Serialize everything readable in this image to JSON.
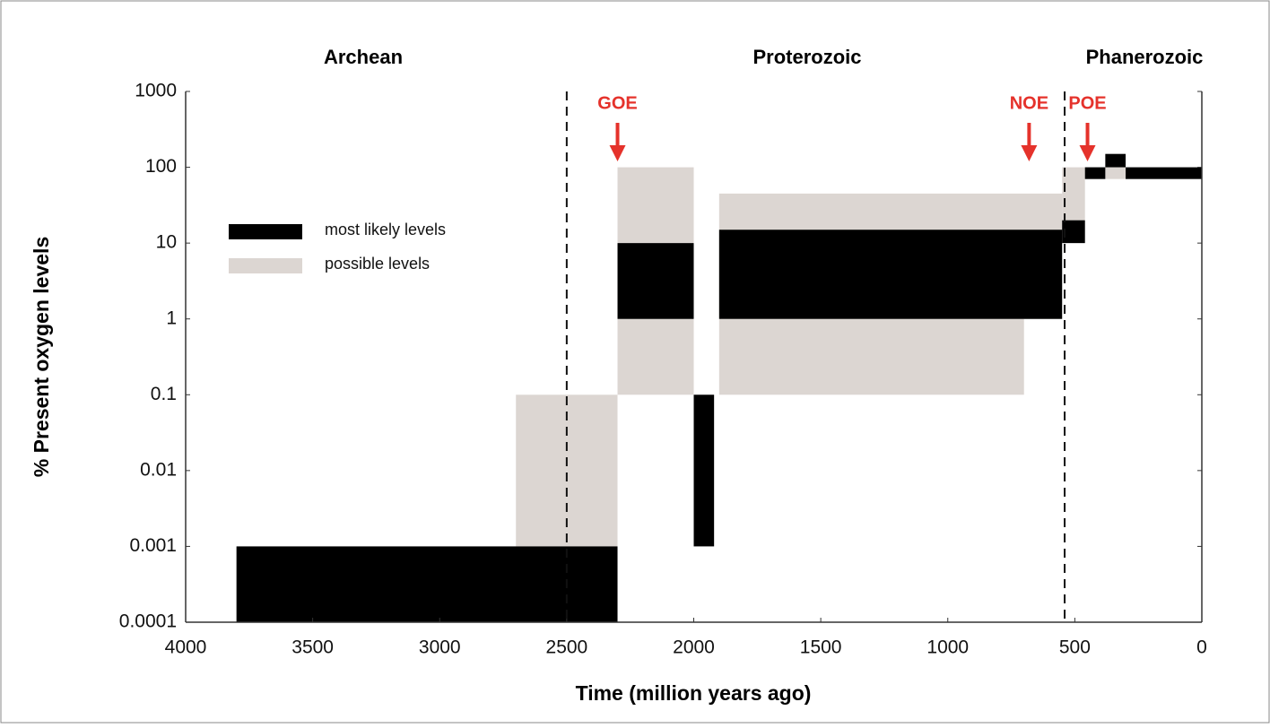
{
  "chart_data": {
    "type": "range",
    "xlabel": "Time (million years ago)",
    "ylabel": "% Present oxygen levels",
    "xlim": [
      4000,
      0
    ],
    "xticks": [
      4000,
      3500,
      3000,
      2500,
      2000,
      1500,
      1000,
      500,
      0
    ],
    "ylim": [
      0.0001,
      1000
    ],
    "yticks": [
      1000,
      100,
      10,
      1,
      0.1,
      0.01,
      0.001,
      0.0001
    ],
    "log_y": true,
    "legend": "upper left",
    "eras": [
      "Archean",
      "Proterozoic",
      "Phanerozoic"
    ],
    "boundaries": [
      2500,
      540
    ],
    "annotations": [
      {
        "text": "GOE",
        "x": 2300
      },
      {
        "text": "NOE",
        "x": 680
      },
      {
        "text": "POE",
        "x": 450
      }
    ],
    "series": [
      {
        "name": "most likely levels",
        "color": "#000000",
        "x": [
          [
            3800,
            2300
          ],
          [
            2300,
            2000
          ],
          [
            2000,
            1920
          ],
          [
            1900,
            550
          ],
          [
            550,
            460
          ],
          [
            460,
            380
          ],
          [
            380,
            300
          ],
          [
            300,
            0
          ]
        ],
        "values": [
          [
            0.0001,
            0.001
          ],
          [
            1,
            10
          ],
          [
            0.001,
            0.1
          ],
          [
            1,
            15
          ],
          [
            10,
            20
          ],
          [
            70,
            100
          ],
          [
            100,
            150
          ],
          [
            70,
            100
          ]
        ]
      },
      {
        "name": "possible levels",
        "color": "#dcd6d2",
        "x": [
          [
            2700,
            2300
          ],
          [
            2300,
            2000
          ],
          [
            1900,
            550
          ],
          [
            1900,
            700
          ],
          [
            550,
            460
          ],
          [
            380,
            300
          ]
        ],
        "values": [
          [
            0.001,
            0.1
          ],
          [
            0.1,
            100
          ],
          [
            1,
            45
          ],
          [
            0.1,
            1
          ],
          [
            20,
            100
          ],
          [
            70,
            100
          ]
        ]
      }
    ]
  }
}
